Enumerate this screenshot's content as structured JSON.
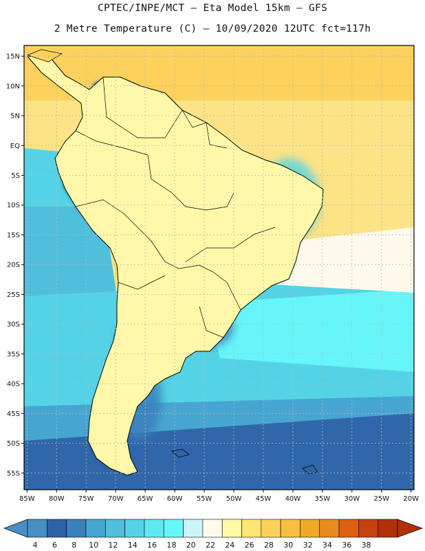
{
  "title_line1": "CPTEC/INPE/MCT –  Eta Model 15km – GFS",
  "title_line2": "2 Metre Temperature (C) – 10/09/2020 12UTC fct=117h",
  "lat_labels": [
    "15N",
    "10N",
    "5N",
    "EQ",
    "5S",
    "10S",
    "15S",
    "20S",
    "25S",
    "30S",
    "35S",
    "40S",
    "45S",
    "50S",
    "55S"
  ],
  "lon_labels": [
    "85W",
    "80W",
    "75W",
    "70W",
    "65W",
    "60W",
    "55W",
    "50W",
    "45W",
    "40W",
    "35W",
    "30W",
    "25W",
    "20W"
  ],
  "map_extent": {
    "lon": [
      -85.5,
      -19.5
    ],
    "lat": [
      -57.8,
      16.8
    ]
  },
  "colorbar": {
    "labels": [
      "4",
      "6",
      "8",
      "10",
      "12",
      "14",
      "16",
      "18",
      "20",
      "22",
      "24",
      "26",
      "28",
      "30",
      "32",
      "34",
      "36",
      "38"
    ],
    "colors": [
      "#4a8fc4",
      "#2f62a6",
      "#3b7fbd",
      "#47a6d1",
      "#4fbfdc",
      "#55d3e6",
      "#5fe8f2",
      "#66f6fa",
      "#cdf3fb",
      "#fffaeb",
      "#fff8a8",
      "#ffe574",
      "#fcd25c",
      "#f7c042",
      "#f0aa25",
      "#ea8c1c",
      "#dd6111",
      "#c5430f",
      "#b03008"
    ],
    "under_color": "#4a8fc4",
    "over_color": "#b03008"
  }
}
